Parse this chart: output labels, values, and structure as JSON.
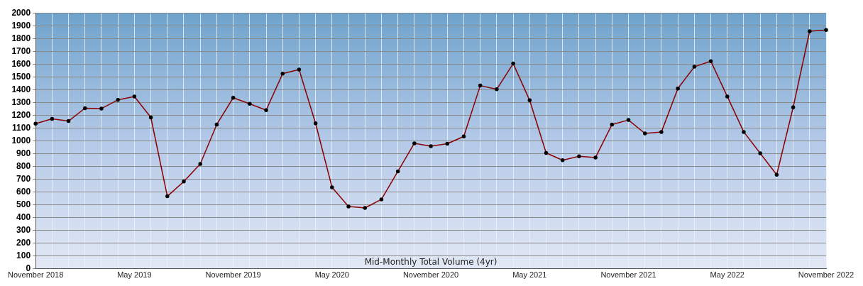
{
  "chart_data": {
    "type": "line",
    "title": "Mid-Monthly Total Volume (4yr)",
    "x": [
      "2018-11",
      "2018-12",
      "2019-01",
      "2019-02",
      "2019-03",
      "2019-04",
      "2019-05",
      "2019-06",
      "2019-07",
      "2019-08",
      "2019-09",
      "2019-10",
      "2019-11",
      "2019-12",
      "2020-01",
      "2020-02",
      "2020-03",
      "2020-04",
      "2020-05",
      "2020-06",
      "2020-07",
      "2020-08",
      "2020-09",
      "2020-10",
      "2020-11",
      "2020-12",
      "2021-01",
      "2021-02",
      "2021-03",
      "2021-04",
      "2021-05",
      "2021-06",
      "2021-07",
      "2021-08",
      "2021-09",
      "2021-10",
      "2021-11",
      "2021-12",
      "2022-01",
      "2022-02",
      "2022-03",
      "2022-04",
      "2022-05",
      "2022-06",
      "2022-07",
      "2022-08",
      "2022-09",
      "2022-10",
      "2022-11"
    ],
    "series": [
      {
        "color": "#8b0000",
        "values": [
          1135,
          1172,
          1155,
          1255,
          1253,
          1320,
          1347,
          1183,
          567,
          682,
          820,
          1128,
          1337,
          1290,
          1240,
          1525,
          1557,
          1137,
          637,
          487,
          476,
          543,
          762,
          981,
          959,
          978,
          1035,
          1432,
          1403,
          1604,
          1317,
          906,
          849,
          879,
          870,
          1128,
          1163,
          1058,
          1070,
          1409,
          1579,
          1623,
          1347,
          1070,
          903,
          735,
          1262,
          1857,
          1866
        ]
      }
    ],
    "xlim": [
      "2018-11",
      "2022-11"
    ],
    "xticks": [
      {
        "value": "2018-11",
        "label": "November 2018"
      },
      {
        "value": "2018-12",
        "label": null
      },
      {
        "value": "2019-01",
        "label": null
      },
      {
        "value": "2019-02",
        "label": null
      },
      {
        "value": "2019-03",
        "label": null
      },
      {
        "value": "2019-04",
        "label": null
      },
      {
        "value": "2019-05",
        "label": "May 2019"
      },
      {
        "value": "2019-06",
        "label": null
      },
      {
        "value": "2019-07",
        "label": null
      },
      {
        "value": "2019-08",
        "label": null
      },
      {
        "value": "2019-09",
        "label": null
      },
      {
        "value": "2019-10",
        "label": null
      },
      {
        "value": "2019-11",
        "label": "November 2019"
      },
      {
        "value": "2019-12",
        "label": null
      },
      {
        "value": "2020-01",
        "label": null
      },
      {
        "value": "2020-02",
        "label": null
      },
      {
        "value": "2020-03",
        "label": null
      },
      {
        "value": "2020-04",
        "label": null
      },
      {
        "value": "2020-05",
        "label": "May 2020"
      },
      {
        "value": "2020-06",
        "label": null
      },
      {
        "value": "2020-07",
        "label": null
      },
      {
        "value": "2020-08",
        "label": null
      },
      {
        "value": "2020-09",
        "label": null
      },
      {
        "value": "2020-10",
        "label": null
      },
      {
        "value": "2020-11",
        "label": "November 2020"
      },
      {
        "value": "2020-12",
        "label": null
      },
      {
        "value": "2021-01",
        "label": null
      },
      {
        "value": "2021-02",
        "label": null
      },
      {
        "value": "2021-03",
        "label": null
      },
      {
        "value": "2021-04",
        "label": null
      },
      {
        "value": "2021-05",
        "label": "May 2021"
      },
      {
        "value": "2021-06",
        "label": null
      },
      {
        "value": "2021-07",
        "label": null
      },
      {
        "value": "2021-08",
        "label": null
      },
      {
        "value": "2021-09",
        "label": null
      },
      {
        "value": "2021-10",
        "label": null
      },
      {
        "value": "2021-11",
        "label": "November 2021"
      },
      {
        "value": "2021-12",
        "label": null
      },
      {
        "value": "2022-01",
        "label": null
      },
      {
        "value": "2022-02",
        "label": null
      },
      {
        "value": "2022-03",
        "label": null
      },
      {
        "value": "2022-04",
        "label": null
      },
      {
        "value": "2022-05",
        "label": "May 2022"
      },
      {
        "value": "2022-06",
        "label": null
      },
      {
        "value": "2022-07",
        "label": null
      },
      {
        "value": "2022-08",
        "label": null
      },
      {
        "value": "2022-09",
        "label": null
      },
      {
        "value": "2022-10",
        "label": null
      },
      {
        "value": "2022-11",
        "label": "November 2022"
      }
    ],
    "ylim": [
      0,
      2000
    ],
    "yticks": [
      0,
      100,
      200,
      300,
      400,
      500,
      600,
      700,
      800,
      900,
      1000,
      1100,
      1200,
      1300,
      1400,
      1500,
      1600,
      1700,
      1800,
      1900,
      2000
    ],
    "grid": true,
    "legend": false,
    "marker": "circle",
    "line_style": "solid"
  }
}
